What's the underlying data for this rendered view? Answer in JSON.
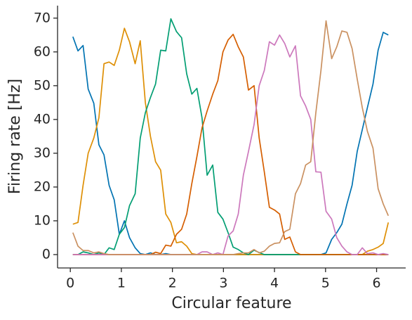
{
  "chart_data": {
    "type": "line",
    "xlabel": "Circular feature",
    "ylabel": "Firing rate [Hz]",
    "x": [
      0.05,
      0.15,
      0.25,
      0.35,
      0.46,
      0.56,
      0.66,
      0.76,
      0.86,
      0.96,
      1.06,
      1.16,
      1.27,
      1.37,
      1.47,
      1.57,
      1.67,
      1.77,
      1.87,
      1.97,
      2.08,
      2.18,
      2.28,
      2.38,
      2.48,
      2.58,
      2.68,
      2.79,
      2.89,
      2.99,
      3.09,
      3.19,
      3.29,
      3.39,
      3.49,
      3.6,
      3.7,
      3.8,
      3.9,
      4.0,
      4.1,
      4.2,
      4.3,
      4.41,
      4.51,
      4.61,
      4.71,
      4.81,
      4.91,
      5.01,
      5.12,
      5.22,
      5.32,
      5.42,
      5.52,
      5.62,
      5.72,
      5.82,
      5.93,
      6.03,
      6.13,
      6.23
    ],
    "series": [
      {
        "color": "#0173b2",
        "values": [
          64.5,
          60.3,
          61.9,
          49,
          44.8,
          32.5,
          29.5,
          20.5,
          16.2,
          6,
          10,
          5,
          2,
          0.3,
          0,
          0.5,
          0,
          0,
          0.3,
          0,
          0,
          0,
          0,
          0,
          0,
          0,
          0,
          0,
          0,
          0,
          0,
          0,
          0,
          0,
          0,
          0,
          0,
          0,
          0,
          0,
          0,
          0,
          0,
          0,
          0,
          0,
          0,
          0,
          0,
          0.5,
          4.5,
          6.5,
          9,
          15,
          20.5,
          30.5,
          37,
          43.5,
          50.5,
          60.5,
          65.8,
          65
        ]
      },
      {
        "color": "#de8f05",
        "values": [
          9,
          9.5,
          20.5,
          30,
          34.5,
          40.5,
          56.5,
          57,
          56,
          60.5,
          67,
          63,
          56.5,
          63.3,
          45,
          35,
          27.5,
          25,
          12,
          9.5,
          3.5,
          3.8,
          2.5,
          0.3,
          0,
          0,
          0,
          0,
          0,
          0,
          0,
          0,
          0,
          0,
          0,
          0,
          0,
          0,
          0,
          0,
          0,
          0,
          0,
          0,
          0,
          0,
          0,
          0,
          0,
          0,
          0,
          0,
          0,
          0,
          0,
          0,
          0,
          1,
          1.5,
          2.2,
          3.3,
          9.5
        ]
      },
      {
        "color": "#029e73",
        "values": [
          0,
          0,
          0.8,
          0.5,
          0,
          0.5,
          0,
          2,
          1.5,
          6,
          8,
          14.5,
          18,
          34.5,
          42,
          46.5,
          50.5,
          60.5,
          60.3,
          69.8,
          66,
          64.2,
          53.5,
          47.5,
          49.2,
          40.5,
          23.5,
          26.5,
          12.5,
          10.5,
          6.5,
          2.2,
          1.5,
          0.5,
          0,
          1.3,
          0.6,
          0,
          0,
          0,
          0,
          0,
          0,
          0,
          0,
          0,
          0,
          0,
          0,
          0,
          0,
          0,
          0,
          0,
          0,
          0,
          0,
          0,
          0,
          0,
          0,
          0
        ]
      },
      {
        "color": "#d55e00",
        "values": [
          0,
          0,
          0,
          0,
          0,
          0,
          0,
          0,
          0,
          0,
          0,
          0,
          0,
          0,
          0,
          0,
          0.7,
          0.3,
          2.8,
          2.5,
          6,
          7.5,
          12,
          21,
          29,
          37.5,
          42.5,
          47.5,
          51.5,
          60,
          63.5,
          65.2,
          61.5,
          58.5,
          48.7,
          50,
          34.5,
          24.5,
          14,
          13.2,
          12,
          4.5,
          5.2,
          0.8,
          0,
          0,
          0,
          0,
          0,
          0,
          0,
          0,
          0,
          0,
          0,
          0,
          0,
          0,
          0,
          0,
          0,
          0
        ]
      },
      {
        "color": "#cc78bc",
        "values": [
          0,
          0,
          0,
          0,
          0,
          0,
          0,
          0,
          0,
          0,
          0,
          0,
          0,
          0,
          0,
          0,
          0,
          0,
          0,
          0,
          0,
          0,
          0,
          0,
          0,
          0.8,
          0.8,
          0,
          0.5,
          0,
          5.5,
          7,
          12,
          23.5,
          30.5,
          38.5,
          50,
          54.5,
          63,
          62,
          65,
          62.5,
          58.5,
          61.8,
          47,
          44,
          40,
          24.5,
          24.4,
          12.8,
          10.5,
          5,
          2.5,
          0.8,
          0,
          0,
          2,
          0.3,
          0.5,
          0,
          0.3,
          0
        ]
      },
      {
        "color": "#ca9161",
        "values": [
          6.5,
          2.5,
          1.2,
          1.2,
          0.5,
          0.8,
          0.3,
          0,
          0,
          0,
          0,
          0,
          0,
          0,
          0,
          0,
          0,
          0,
          0,
          0,
          0,
          0,
          0,
          0,
          0,
          0,
          0,
          0,
          0,
          0,
          0,
          0,
          0.3,
          0.5,
          0.5,
          1.5,
          0.5,
          1,
          2.5,
          3.3,
          3.5,
          6.8,
          7.5,
          18,
          21,
          26.5,
          27.5,
          42,
          54.5,
          69.2,
          58,
          61.5,
          66.2,
          65.8,
          61,
          52,
          43.5,
          36.5,
          31.5,
          19.5,
          15,
          11.5
        ]
      }
    ],
    "xlim": [
      -0.25,
      6.57
    ],
    "ylim": [
      -3.96,
      73.7
    ],
    "xticks": [
      0,
      1,
      2,
      3,
      4,
      5,
      6
    ],
    "yticks": [
      0,
      10,
      20,
      30,
      40,
      50,
      60,
      70
    ],
    "grid": false
  }
}
